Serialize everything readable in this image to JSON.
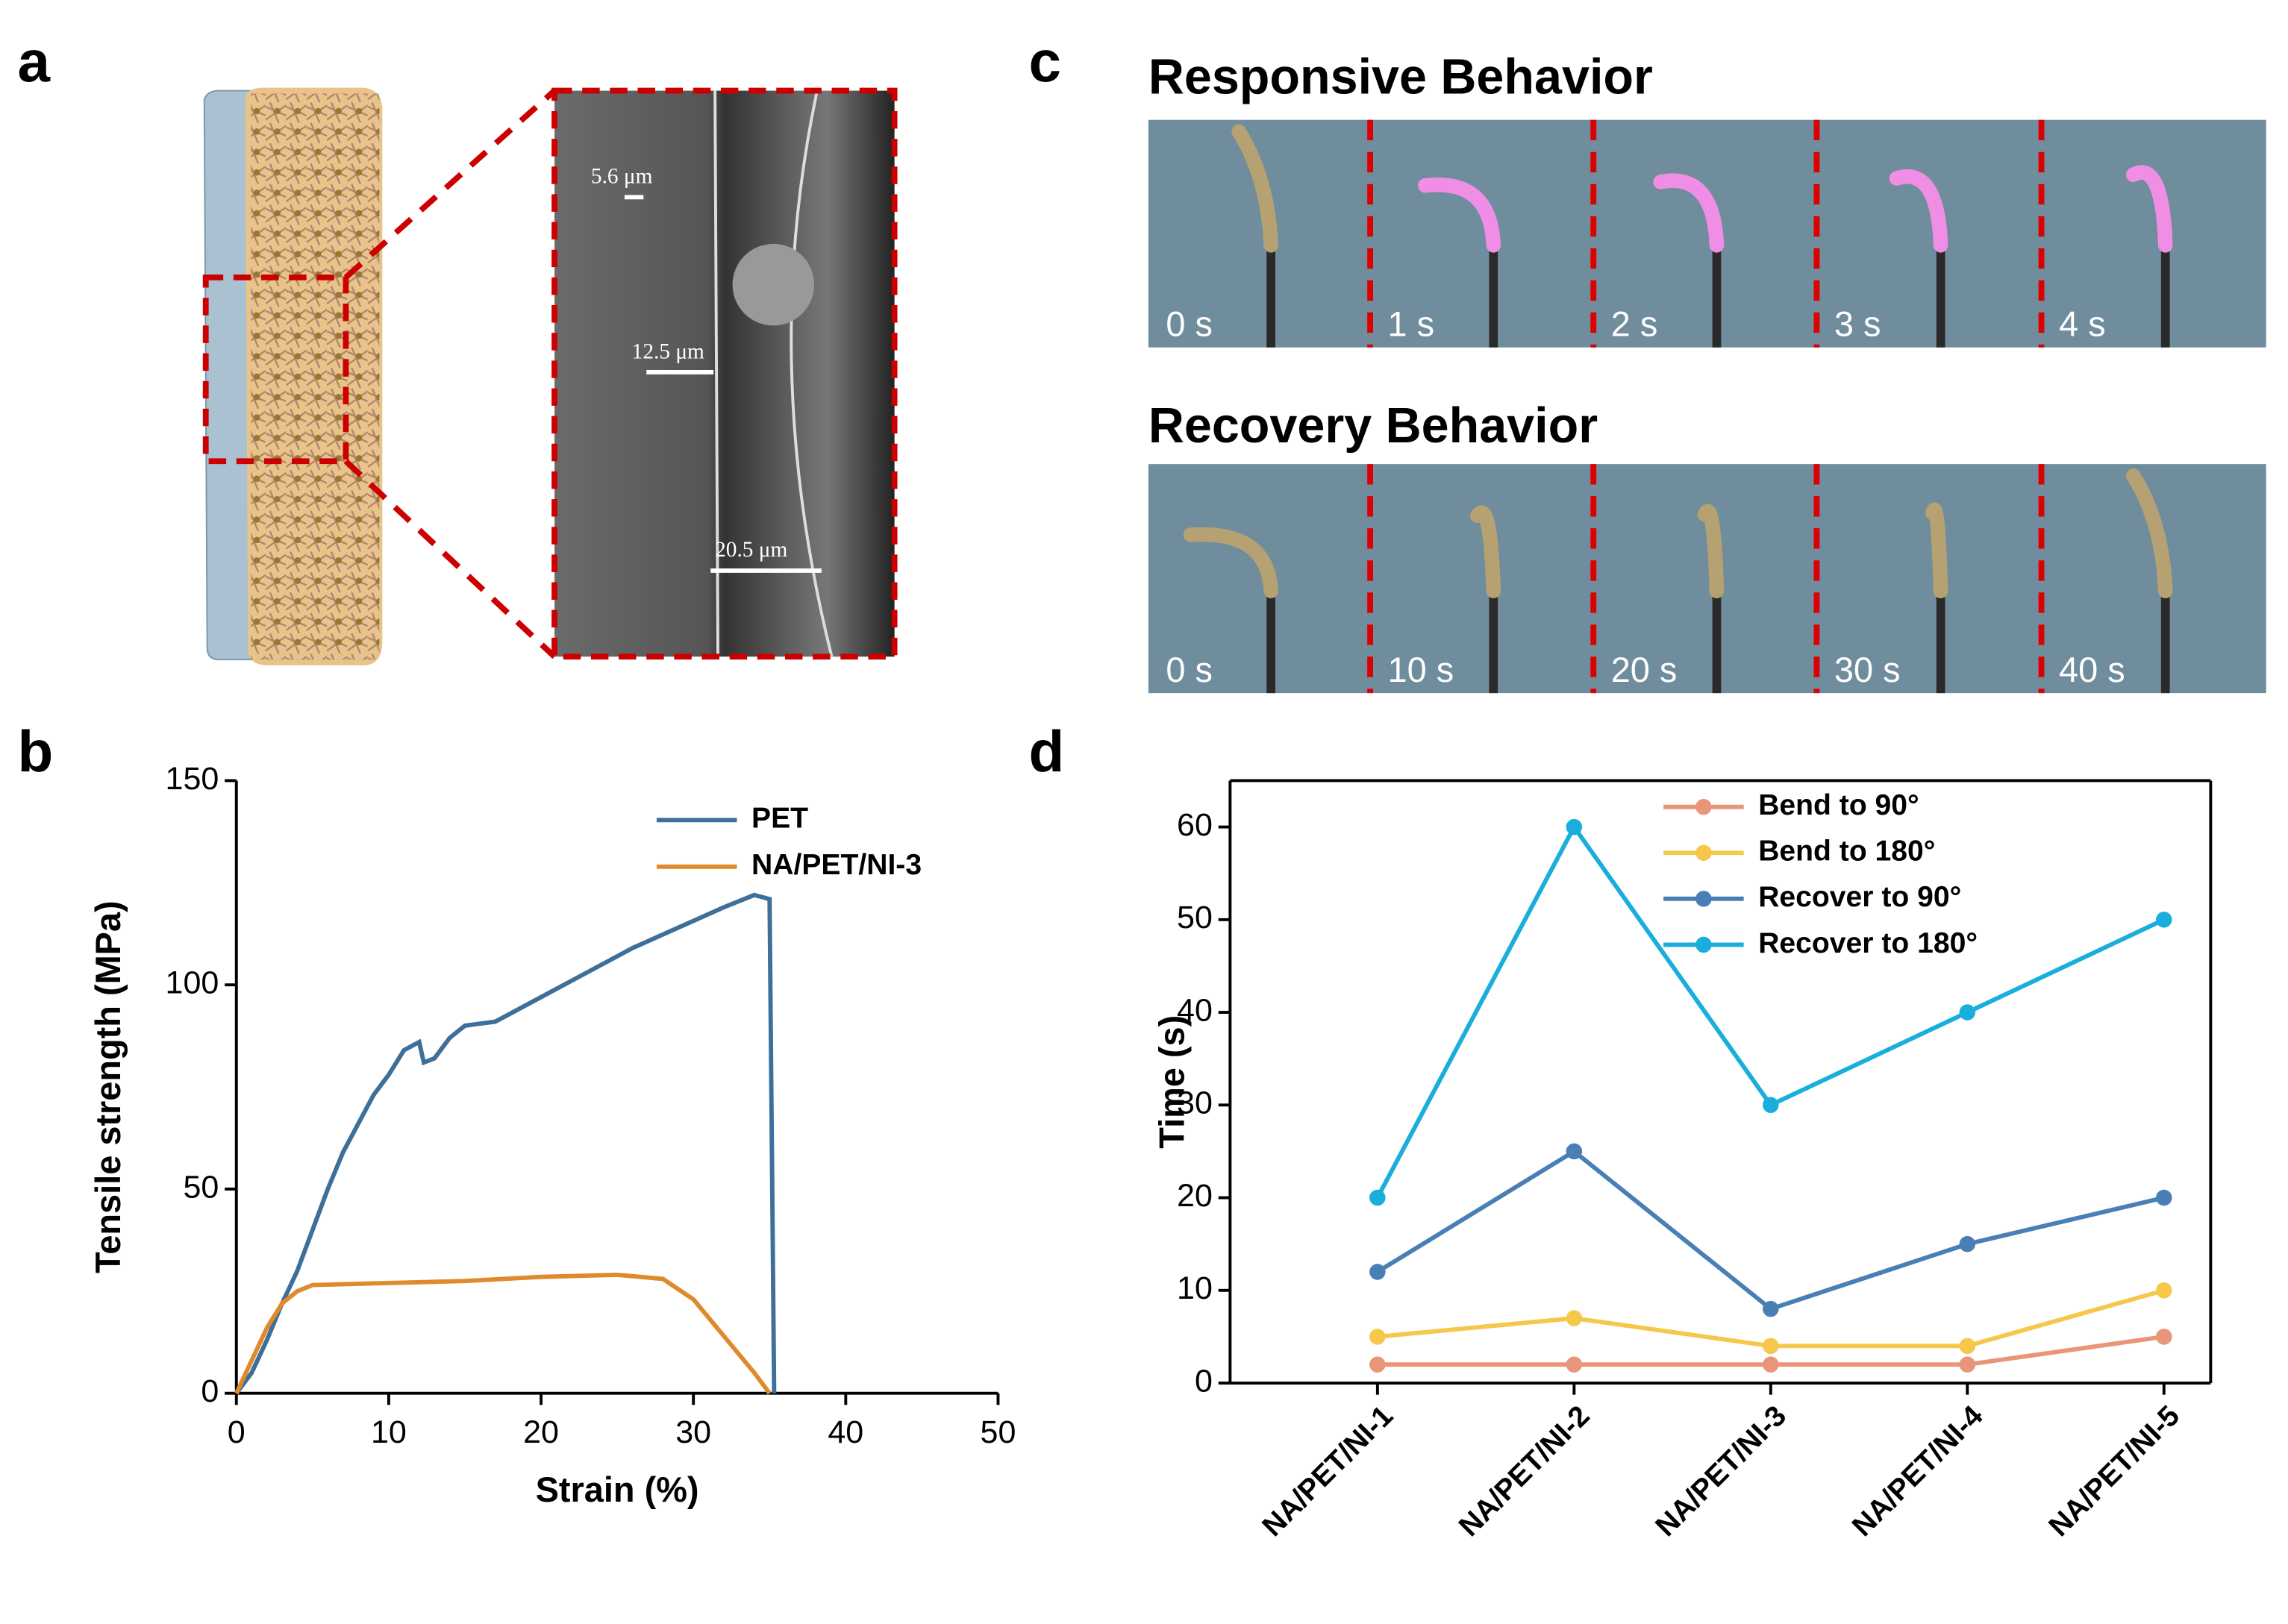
{
  "panel_labels": [
    "a",
    "b",
    "c",
    "d"
  ],
  "scale_bars": [
    "5.6 μm",
    "12.5 μm",
    "20.5 μm"
  ],
  "responsive": {
    "title": "Responsive Behavior",
    "frames": [
      "0 s",
      "1 s",
      "2 s",
      "3 s",
      "4 s"
    ]
  },
  "recovery": {
    "title": "Recovery Behavior",
    "frames": [
      "0 s",
      "10 s",
      "20 s",
      "30 s",
      "40 s"
    ]
  },
  "chart_data": [
    {
      "type": "line",
      "xlabel": "Strain (%)",
      "ylabel": "Tensile strength (MPa)",
      "xlim": [
        0,
        50
      ],
      "xticks": [
        0,
        10,
        20,
        30,
        40,
        50
      ],
      "ylim": [
        0,
        150
      ],
      "yticks": [
        0,
        50,
        100,
        150
      ],
      "legend": "upper right",
      "series": [
        {
          "name": "PET",
          "color": "#3d6f99",
          "x": [
            0,
            1,
            2,
            3,
            4,
            5,
            6,
            7,
            8,
            9,
            10,
            11,
            12,
            12.3,
            13,
            14,
            15,
            17,
            20,
            23,
            26,
            29,
            32,
            34,
            35,
            35.3
          ],
          "values": [
            0,
            5,
            13,
            22,
            30,
            40,
            50,
            59,
            66,
            73,
            78,
            84,
            86,
            81,
            82,
            87,
            90,
            91,
            97,
            103,
            109,
            114,
            119,
            122,
            121,
            0
          ]
        },
        {
          "name": "NA/PET/NI-3",
          "color": "#e08a2e",
          "x": [
            0,
            1,
            2,
            3,
            4,
            5,
            10,
            15,
            20,
            25,
            28,
            30,
            32,
            34,
            35
          ],
          "values": [
            0,
            8,
            16,
            22,
            25,
            26.5,
            27,
            27.5,
            28.5,
            29,
            28,
            23,
            14,
            5,
            0
          ]
        }
      ]
    },
    {
      "type": "line",
      "ylabel": "Time (s)",
      "categories": [
        "NA/PET/NI-1",
        "NA/PET/NI-2",
        "NA/PET/NI-3",
        "NA/PET/NI-4",
        "NA/PET/NI-5"
      ],
      "ylim": [
        0,
        65
      ],
      "yticks": [
        0,
        10,
        20,
        30,
        40,
        50,
        60
      ],
      "legend": "upper left",
      "series": [
        {
          "name": "Bend to 90°",
          "color": "#e8957a",
          "values": [
            2,
            2,
            2,
            2,
            5
          ]
        },
        {
          "name": "Bend to 180°",
          "color": "#f5c84c",
          "values": [
            5,
            7,
            4,
            4,
            10
          ]
        },
        {
          "name": "Recover to 90°",
          "color": "#4a7fb5",
          "values": [
            12,
            25,
            8,
            15,
            20
          ]
        },
        {
          "name": "Recover to 180°",
          "color": "#1aaedc",
          "values": [
            20,
            60,
            30,
            40,
            50
          ]
        }
      ]
    }
  ]
}
